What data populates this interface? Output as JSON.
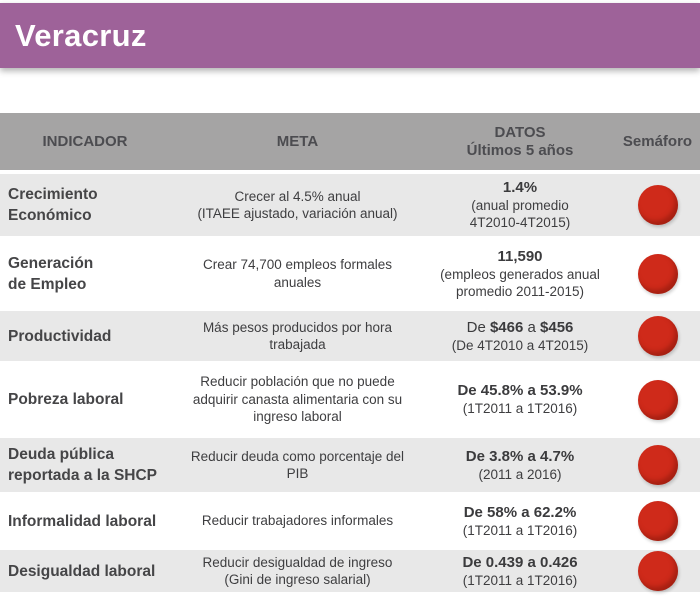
{
  "page": {
    "title": "Veracruz"
  },
  "colors": {
    "title_bar_purple": "#9e6299",
    "table_header_gray": "#a5a4a4",
    "row_shaded_gray": "#e8e8e8",
    "row_white": "#ffffff",
    "semaforo_red": "#cf2a1a",
    "text_dark_gray": "#454547"
  },
  "table": {
    "columns": [
      {
        "label": "INDICADOR"
      },
      {
        "label": "META"
      },
      {
        "label": "DATOS",
        "sublabel": "Últimos 5 años"
      },
      {
        "label": "Semáforo"
      }
    ],
    "rows": [
      {
        "indicator": "Crecimiento\nEconómico",
        "meta": "Crecer al 4.5% anual\n(ITAEE ajustado, variación anual)",
        "datos_value_parts": [
          {
            "text": "1.4%",
            "bold": true
          }
        ],
        "datos_detail": "(anual promedio\n4T2010-4T2015)",
        "semaforo": "red",
        "shaded": true
      },
      {
        "indicator": "Generación\nde Empleo",
        "meta": "Crear  74,700 empleos formales\nanuales",
        "datos_value_parts": [
          {
            "text": "11,590",
            "bold": true
          }
        ],
        "datos_detail": "(empleos generados anual\npromedio 2011-2015)",
        "semaforo": "red",
        "shaded": false
      },
      {
        "indicator": "Productividad",
        "meta": "Más pesos producidos por hora\ntrabajada",
        "datos_value_parts": [
          {
            "text": "De ",
            "bold": false
          },
          {
            "text": "$466",
            "bold": true
          },
          {
            "text": " a ",
            "bold": false
          },
          {
            "text": "$456",
            "bold": true
          }
        ],
        "datos_detail": "(De 4T2010 a 4T2015)",
        "semaforo": "red",
        "shaded": true
      },
      {
        "indicator": "Pobreza laboral",
        "meta": "Reducir población que no puede\nadquirir canasta alimentaria con su\ningreso laboral",
        "datos_value_parts": [
          {
            "text": "De 45.8% a 53.9%",
            "bold": true
          }
        ],
        "datos_detail": "(1T2011 a 1T2016)",
        "semaforo": "red",
        "shaded": false
      },
      {
        "indicator": "Deuda pública\nreportada a la SHCP",
        "meta": "Reducir deuda como porcentaje del\nPIB",
        "datos_value_parts": [
          {
            "text": "De 3.8% a 4.7%",
            "bold": true
          }
        ],
        "datos_detail": "(2011 a 2016)",
        "semaforo": "red",
        "shaded": true
      },
      {
        "indicator": "Informalidad laboral",
        "meta": "Reducir trabajadores informales",
        "datos_value_parts": [
          {
            "text": "De 58% a 62.2%",
            "bold": true
          }
        ],
        "datos_detail": "(1T2011 a 1T2016)",
        "semaforo": "red",
        "shaded": false
      },
      {
        "indicator": "Desigualdad laboral",
        "meta": "Reducir desigualdad de ingreso\n(Gini de ingreso salarial)",
        "datos_value_parts": [
          {
            "text": "De 0.439 a 0.426",
            "bold": true
          }
        ],
        "datos_detail": "(1T2011 a 1T2016)",
        "semaforo": "red",
        "shaded": true
      }
    ]
  }
}
